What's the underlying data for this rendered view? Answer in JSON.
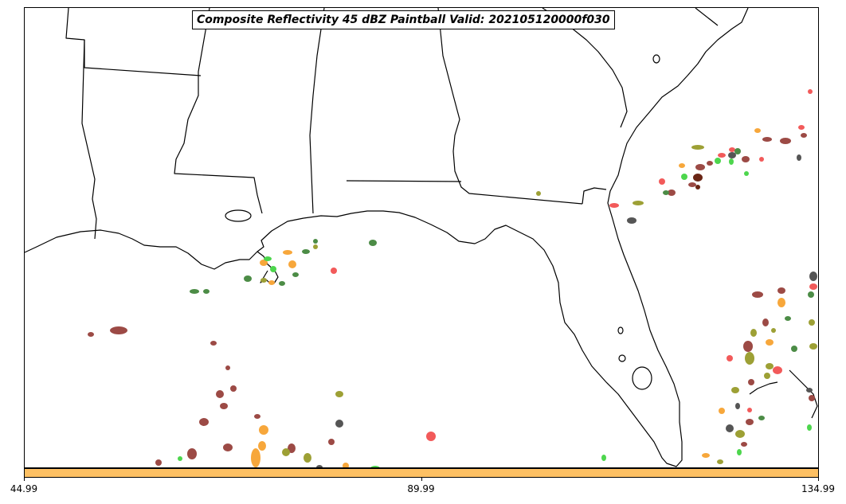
{
  "title": "Composite Reflectivity 45 dBZ Paintball Valid: 202105120000f030",
  "colorbar": {
    "color": "#fdc063",
    "ticks": [
      {
        "value": "44.99",
        "frac": 0.0
      },
      {
        "value": "89.99",
        "frac": 0.5
      },
      {
        "value": "134.99",
        "frac": 1.0
      }
    ]
  },
  "palette": {
    "brown": "#9c4a45",
    "red": "#f25a5a",
    "orange": "#f7a73b",
    "green": "#4dd64d",
    "darkgreen": "#4c8c46",
    "olive": "#9da035",
    "gray": "#555555",
    "darkred": "#6a2515"
  }
}
